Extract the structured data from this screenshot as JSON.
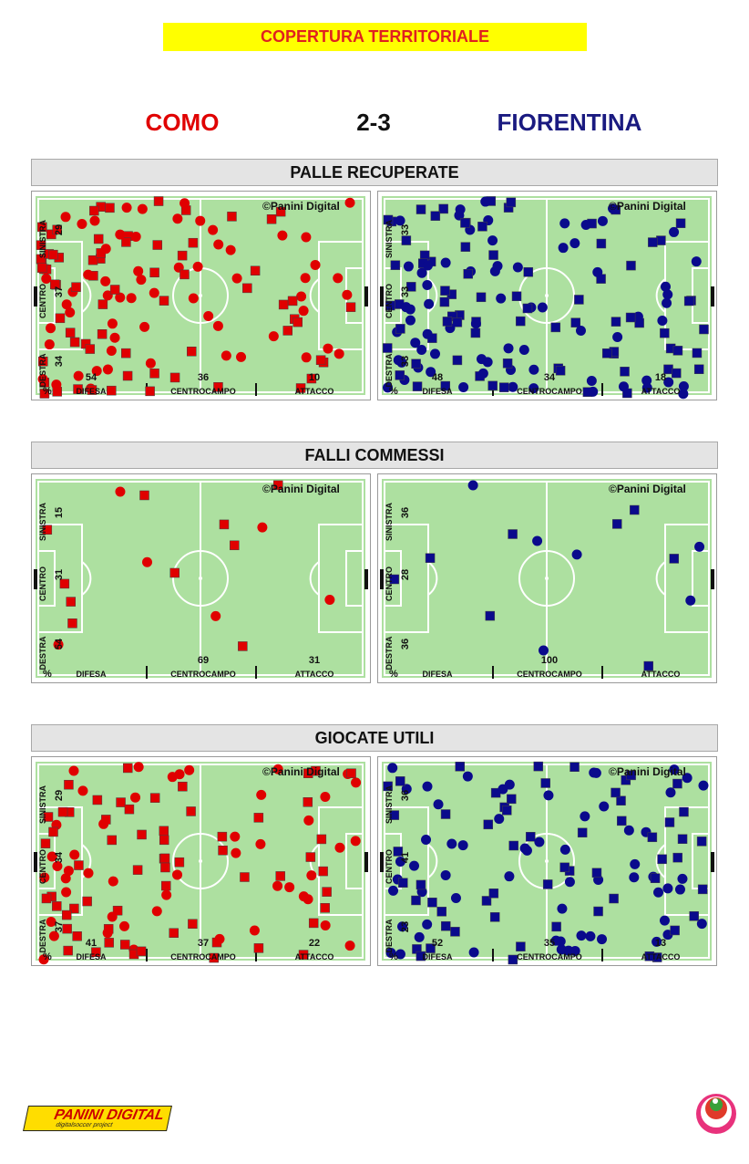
{
  "banner": "COPERTURA TERRITORIALE",
  "match": {
    "home": "COMO",
    "score": "2-3",
    "away": "FIORENTINA"
  },
  "colors": {
    "home": "#e00000",
    "away": "#0a0a8c",
    "pitch": "#ade0a0",
    "banner": "#ffff00"
  },
  "labels": {
    "copyright": "©Panini  Digital",
    "zones": [
      "DIFESA",
      "CENTROCAMPO",
      "ATTACCO"
    ],
    "sides": [
      "SINISTRA",
      "CENTRO",
      "DESTRA"
    ],
    "percent": "%"
  },
  "sections": [
    {
      "title": "PALLE RECUPERATE",
      "panels": [
        {
          "team": "home",
          "copyright": true,
          "side_pct": [
            "29",
            "37",
            "34"
          ],
          "zone_pct": [
            "54",
            "36",
            "10"
          ]
        },
        {
          "team": "away",
          "copyright": true,
          "side_pct": [
            "33",
            "33",
            "33"
          ],
          "zone_pct": [
            "48",
            "34",
            "18"
          ]
        }
      ]
    },
    {
      "title": "FALLI COMMESSI",
      "panels": [
        {
          "team": "home",
          "copyright": true,
          "side_pct": [
            "15",
            "31",
            "54"
          ],
          "zone_pct": [
            "",
            "69",
            "31"
          ]
        },
        {
          "team": "away",
          "copyright": true,
          "side_pct": [
            "36",
            "28",
            "36"
          ],
          "zone_pct": [
            "",
            "100",
            ""
          ]
        }
      ]
    },
    {
      "title": "GIOCATE UTILI",
      "panels": [
        {
          "team": "home",
          "copyright": true,
          "side_pct": [
            "29",
            "34",
            "37"
          ],
          "zone_pct": [
            "41",
            "37",
            "22"
          ]
        },
        {
          "team": "away",
          "copyright": true,
          "side_pct": [
            "36",
            "41",
            "23"
          ],
          "zone_pct": [
            "52",
            "35",
            "13"
          ]
        }
      ]
    }
  ],
  "footer": {
    "logo_text": "PANINI DIGITAL",
    "logo_sub": "digitalsoccer project"
  }
}
